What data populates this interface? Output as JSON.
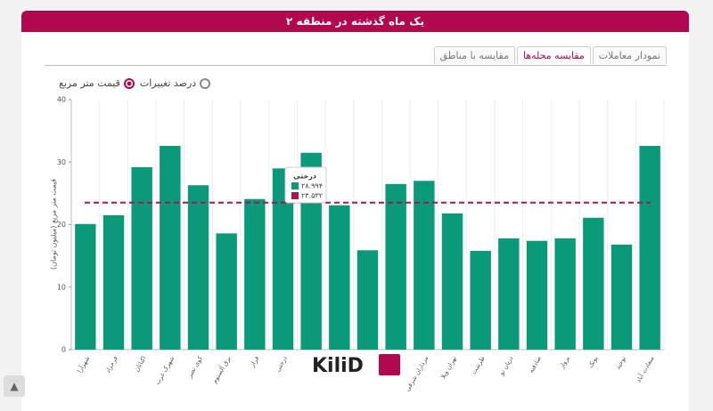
{
  "header": {
    "title": "یک ماه گذشته در منطقه ۲"
  },
  "tabs": [
    "مقایسه با مناطق",
    "مقایسه محله‌ها",
    "نمودار معاملات"
  ],
  "radios": [
    "قیمت متر مربع",
    "درصد تغییرات"
  ],
  "logo": "KiliD",
  "chart_data": {
    "type": "bar",
    "y_label": "قیمت متر مربع (میلیون تومان)",
    "categories": [
      "شهرآرا",
      "فرحزاد",
      "اکباتان",
      "شهرک غرب",
      "کوی نصر",
      "برق آلستوم",
      "فراز",
      "درختی",
      null,
      null,
      null,
      null,
      "مرداران شرقی",
      "تهران ویلا",
      "طرشت",
      "دریان نو",
      "صادقیه",
      "پرواز",
      "پونک",
      "توحید",
      "سعادت آباد"
    ],
    "values": [
      20.1,
      21.5,
      29.2,
      32.6,
      26.3,
      18.6,
      24.1,
      28.994,
      31.5,
      23.1,
      15.9,
      26.5,
      27.0,
      21.8,
      15.8,
      17.8,
      17.4,
      17.8,
      21.1,
      16.8,
      32.6
    ],
    "color": "#0b9a79",
    "average": 23.532,
    "average_color": "#a8144d",
    "ylim": [
      0,
      40
    ],
    "yticks": [
      0,
      10,
      20,
      30,
      40
    ],
    "tooltip": {
      "title": "درختی",
      "items": [
        "۲۸.۹۹۴",
        "۲۳.۵۳۲"
      ]
    }
  }
}
